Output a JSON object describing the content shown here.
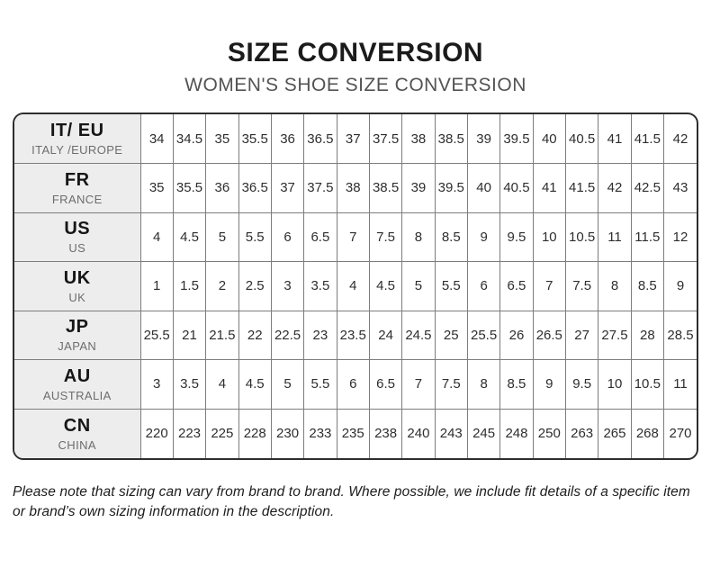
{
  "header": {
    "title": "SIZE CONVERSION",
    "subtitle": "WOMEN'S SHOE SIZE CONVERSION"
  },
  "chart_data": {
    "type": "table",
    "title": "SIZE CONVERSION",
    "subtitle": "WOMEN'S SHOE SIZE CONVERSION",
    "rows": [
      {
        "code": "IT/ EU",
        "region": "ITALY /EUROPE",
        "values": [
          "34",
          "34.5",
          "35",
          "35.5",
          "36",
          "36.5",
          "37",
          "37.5",
          "38",
          "38.5",
          "39",
          "39.5",
          "40",
          "40.5",
          "41",
          "41.5",
          "42"
        ]
      },
      {
        "code": "FR",
        "region": "FRANCE",
        "values": [
          "35",
          "35.5",
          "36",
          "36.5",
          "37",
          "37.5",
          "38",
          "38.5",
          "39",
          "39.5",
          "40",
          "40.5",
          "41",
          "41.5",
          "42",
          "42.5",
          "43"
        ]
      },
      {
        "code": "US",
        "region": "US",
        "values": [
          "4",
          "4.5",
          "5",
          "5.5",
          "6",
          "6.5",
          "7",
          "7.5",
          "8",
          "8.5",
          "9",
          "9.5",
          "10",
          "10.5",
          "11",
          "11.5",
          "12"
        ]
      },
      {
        "code": "UK",
        "region": "UK",
        "values": [
          "1",
          "1.5",
          "2",
          "2.5",
          "3",
          "3.5",
          "4",
          "4.5",
          "5",
          "5.5",
          "6",
          "6.5",
          "7",
          "7.5",
          "8",
          "8.5",
          "9"
        ]
      },
      {
        "code": "JP",
        "region": "JAPAN",
        "values": [
          "25.5",
          "21",
          "21.5",
          "22",
          "22.5",
          "23",
          "23.5",
          "24",
          "24.5",
          "25",
          "25.5",
          "26",
          "26.5",
          "27",
          "27.5",
          "28",
          "28.5"
        ]
      },
      {
        "code": "AU",
        "region": "AUSTRALIA",
        "values": [
          "3",
          "3.5",
          "4",
          "4.5",
          "5",
          "5.5",
          "6",
          "6.5",
          "7",
          "7.5",
          "8",
          "8.5",
          "9",
          "9.5",
          "10",
          "10.5",
          "11"
        ]
      },
      {
        "code": "CN",
        "region": "CHINA",
        "values": [
          "220",
          "223",
          "225",
          "228",
          "230",
          "233",
          "235",
          "238",
          "240",
          "243",
          "245",
          "248",
          "250",
          "263",
          "265",
          "268",
          "270"
        ]
      }
    ]
  },
  "footnote": "Please note that sizing can vary from brand to brand. Where possible, we include fit details of a specific item or brand’s own sizing information in the description.",
  "colors": {
    "title": "#1b1b1b",
    "subtitle": "#535353",
    "header_cell_bg": "#ededed",
    "outer_border": "#2d2d2d",
    "inner_border": "#7d7d7d",
    "cell_text": "#2e2e2e"
  }
}
